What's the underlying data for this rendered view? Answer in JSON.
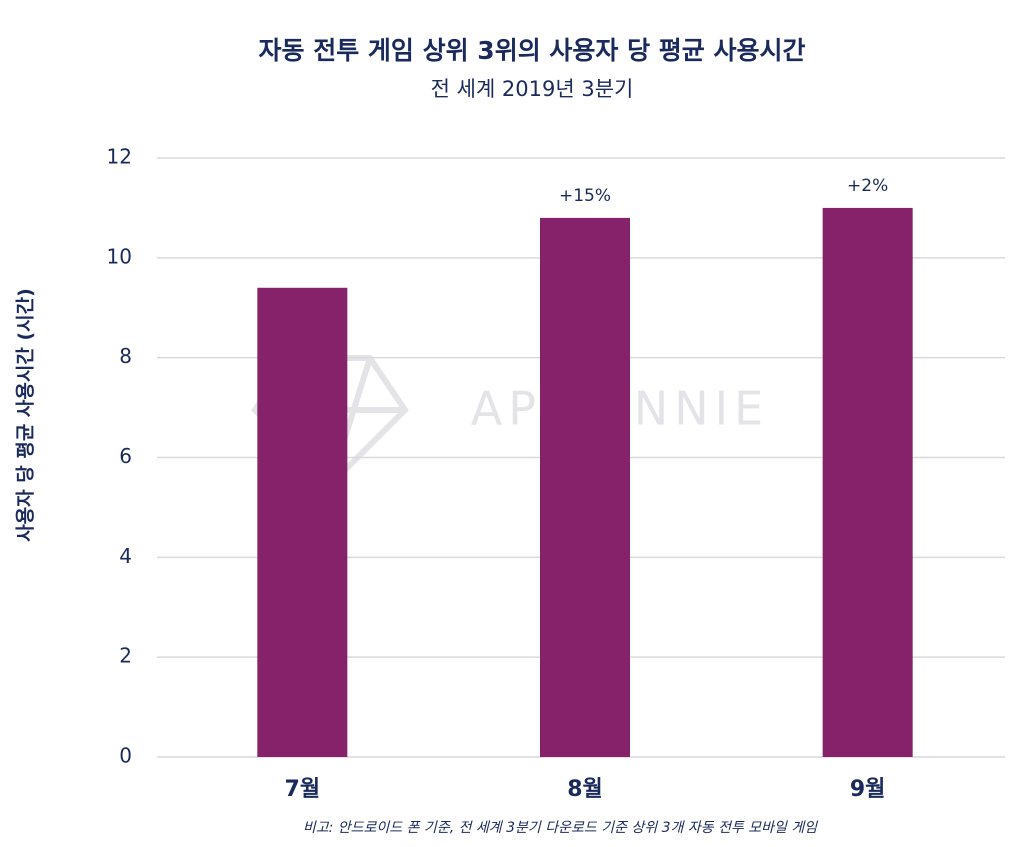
{
  "chart_data": {
    "type": "bar",
    "title": "자동 전투 게임 상위 3위의 사용자 당 평균 사용시간",
    "subtitle": "전 세계 2019년 3분기",
    "y_label": "사용자 당 평균 사용시간 (시간)",
    "categories": [
      "7월",
      "8월",
      "9월"
    ],
    "values": [
      9.4,
      10.8,
      11.0
    ],
    "annotations": [
      null,
      "+15%",
      "+2%"
    ],
    "color": "#85226a",
    "ylim": [
      0,
      12
    ],
    "yticks": [
      0,
      2,
      4,
      6,
      8,
      10,
      12
    ],
    "grid": true,
    "watermark": "APP ANNIE",
    "footnote": "비고: 안드로이드 폰 기준, 전 세계 3분기 다운로드 기준 상위 3개 자동 전투 모바일 게임"
  }
}
